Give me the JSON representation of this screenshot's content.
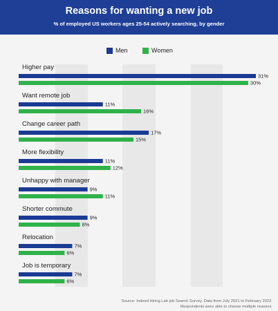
{
  "header": {
    "title": "Reasons for wanting a new job",
    "subtitle": "% of employed US workers ages 25-54 actively searching, by gender"
  },
  "colors": {
    "header_bg": "#1f3f96",
    "men": "#1a3a94",
    "women": "#2fb24a",
    "plot_bg": "#f4f4f4",
    "gridband": "#e8e8e8"
  },
  "legend": {
    "men_label": "Men",
    "women_label": "Women"
  },
  "chart_data": {
    "type": "bar",
    "orientation": "horizontal",
    "title": "Reasons for wanting a new job",
    "subtitle": "% of employed US workers ages 25-54 actively searching, by gender",
    "categories": [
      "Higher pay",
      "Want remote job",
      "Change career path",
      "More flexibility",
      "Unhappy with manager",
      "Shorter commute",
      "Relocation",
      "Job is temporary"
    ],
    "series": [
      {
        "name": "Men",
        "values": [
          31,
          11,
          17,
          11,
          9,
          9,
          7,
          7
        ],
        "labels": [
          "31%",
          "11%",
          "17%",
          "11%",
          "9%",
          "9%",
          "7%",
          "7%"
        ]
      },
      {
        "name": "Women",
        "values": [
          30,
          16,
          15,
          12,
          11,
          8,
          6,
          6
        ],
        "labels": [
          "30%",
          "16%",
          "15%",
          "12%",
          "11%",
          "8%",
          "6%",
          "6%"
        ]
      }
    ],
    "xlim": [
      0,
      31
    ],
    "legend_position": "top-center",
    "grid": "alternating vertical bands"
  },
  "footer": {
    "line1": "Source: Indeed Hiring Lab job Search Survey. Data from July 2021 to February 2022.",
    "line2": "Respondents were able to choose multiple reasons."
  }
}
